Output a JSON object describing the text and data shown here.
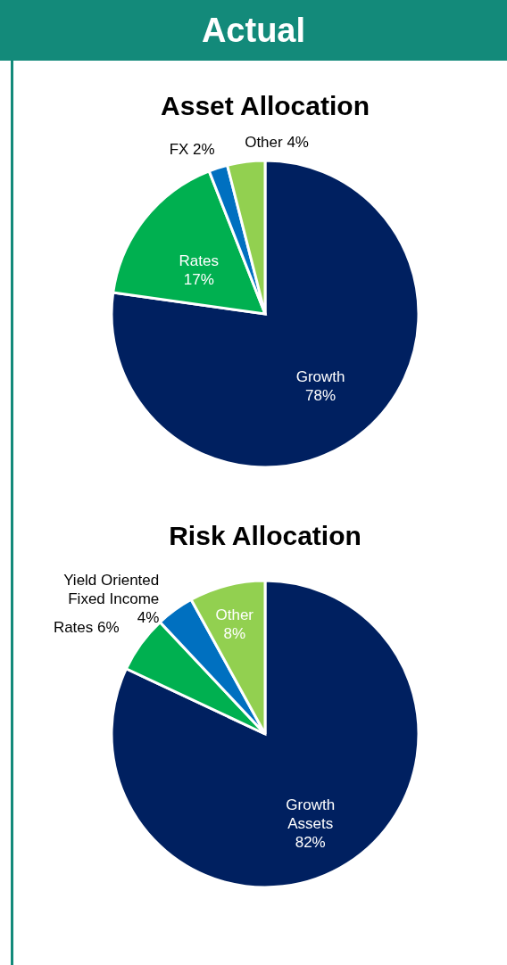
{
  "chart_data": [
    {
      "type": "other",
      "title": "Actual"
    },
    {
      "type": "pie",
      "title": "Asset Allocation",
      "categories": [
        "Growth",
        "Rates",
        "FX",
        "Other"
      ],
      "values": [
        78,
        17,
        2,
        4
      ],
      "value_labels": [
        "78%",
        "17%",
        "2%",
        "4%"
      ],
      "colors": [
        "#002060",
        "#00b050",
        "#0070c0",
        "#92d050"
      ]
    },
    {
      "type": "pie",
      "title": "Risk Allocation",
      "categories": [
        "Growth Assets",
        "Rates",
        "Yield Oriented Fixed Income",
        "Other"
      ],
      "values": [
        82,
        6,
        4,
        8
      ],
      "value_labels": [
        "82%",
        "6%",
        "4%",
        "8%"
      ],
      "colors": [
        "#002060",
        "#00b050",
        "#0070c0",
        "#92d050"
      ]
    }
  ]
}
